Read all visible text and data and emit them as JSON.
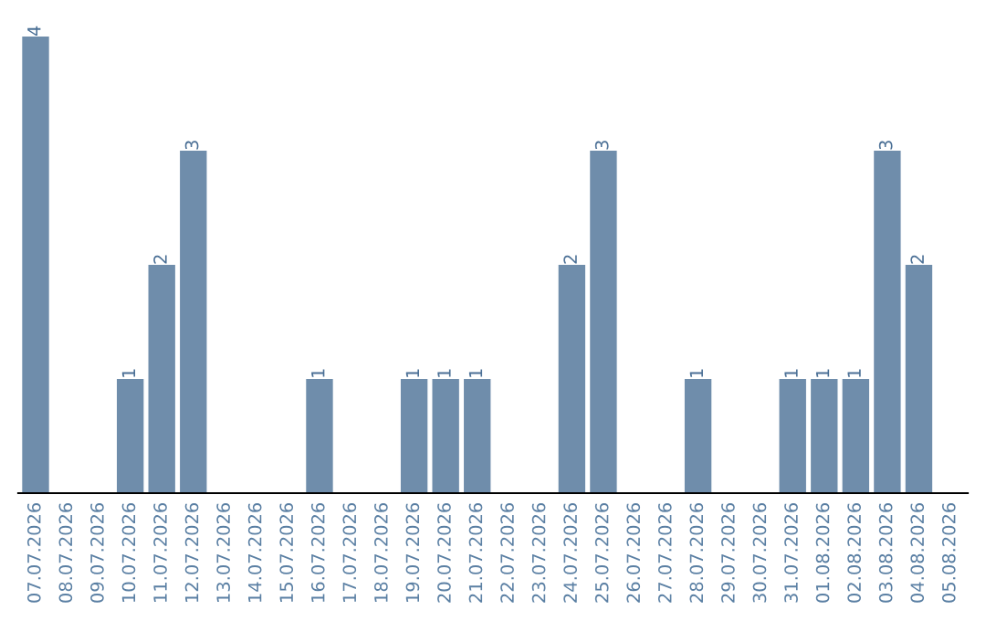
{
  "chart_data": {
    "type": "bar",
    "categories": [
      "07.07.2026",
      "08.07.2026",
      "09.07.2026",
      "10.07.2026",
      "11.07.2026",
      "12.07.2026",
      "13.07.2026",
      "14.07.2026",
      "15.07.2026",
      "16.07.2026",
      "17.07.2026",
      "18.07.2026",
      "19.07.2026",
      "20.07.2026",
      "21.07.2026",
      "22.07.2026",
      "23.07.2026",
      "24.07.2026",
      "25.07.2026",
      "26.07.2026",
      "27.07.2026",
      "28.07.2026",
      "29.07.2026",
      "30.07.2026",
      "31.07.2026",
      "01.08.2026",
      "02.08.2026",
      "03.08.2026",
      "04.08.2026",
      "05.08.2026"
    ],
    "values": [
      4,
      0,
      0,
      1,
      2,
      3,
      0,
      0,
      0,
      1,
      0,
      0,
      1,
      1,
      1,
      0,
      0,
      2,
      3,
      0,
      0,
      1,
      0,
      0,
      1,
      1,
      1,
      3,
      2,
      0
    ],
    "value_labels": [
      "4",
      null,
      null,
      "1",
      "2",
      "3",
      null,
      null,
      null,
      "1",
      null,
      null,
      "1",
      "1",
      "1",
      null,
      null,
      "2",
      "3",
      null,
      null,
      "1",
      null,
      null,
      "1",
      "1",
      "1",
      "3",
      "2",
      null
    ],
    "color": "#6f8dab",
    "tick_labels": "x",
    "grid": false,
    "legend": false
  }
}
